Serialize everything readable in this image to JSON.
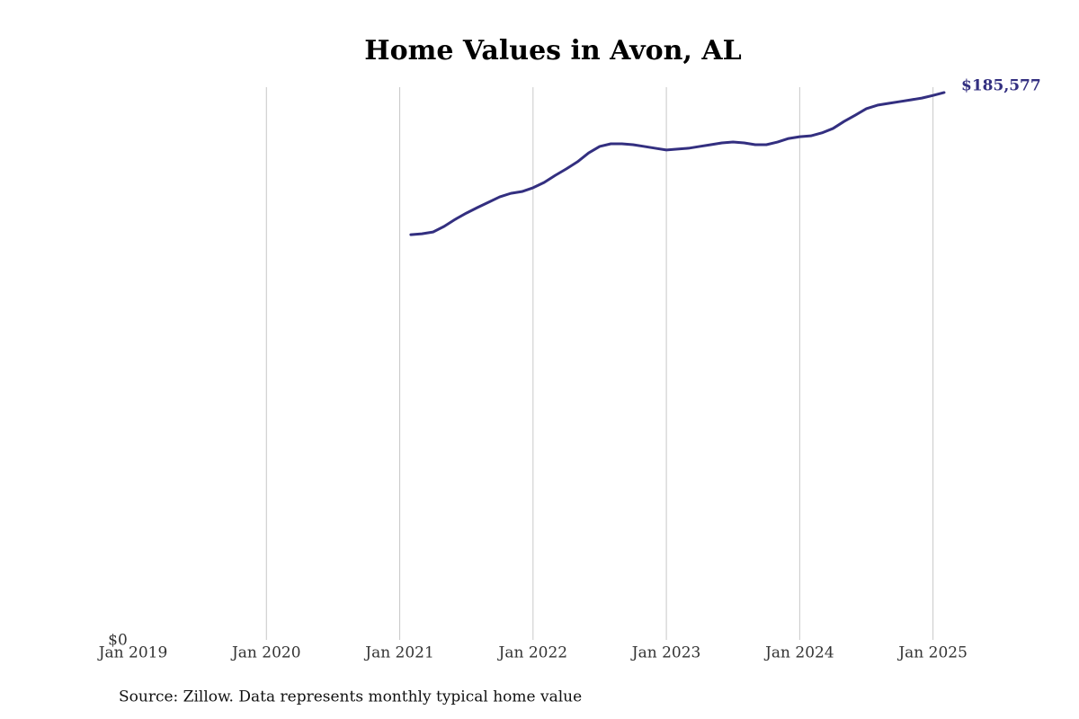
{
  "chart_data": {
    "type": "line",
    "title": "Home Values in Avon, AL",
    "source": "Source: Zillow. Data represents monthly typical home value",
    "x": [
      "2021-02",
      "2021-03",
      "2021-04",
      "2021-05",
      "2021-06",
      "2021-07",
      "2021-08",
      "2021-09",
      "2021-10",
      "2021-11",
      "2021-12",
      "2022-01",
      "2022-02",
      "2022-03",
      "2022-04",
      "2022-05",
      "2022-06",
      "2022-07",
      "2022-08",
      "2022-09",
      "2022-10",
      "2022-11",
      "2022-12",
      "2023-01",
      "2023-02",
      "2023-03",
      "2023-04",
      "2023-05",
      "2023-06",
      "2023-07",
      "2023-08",
      "2023-09",
      "2023-10",
      "2023-11",
      "2023-12",
      "2024-01",
      "2024-02",
      "2024-03",
      "2024-04",
      "2024-05",
      "2024-06",
      "2024-07",
      "2024-08",
      "2024-09",
      "2024-10",
      "2024-11",
      "2024-12",
      "2025-01",
      "2025-02"
    ],
    "series": [
      {
        "name": "Home value",
        "color": "#332f80",
        "values": [
          137400,
          137700,
          138300,
          140200,
          142600,
          144700,
          146600,
          148400,
          150200,
          151400,
          152000,
          153300,
          155100,
          157500,
          159700,
          162100,
          165100,
          167300,
          168200,
          168200,
          167900,
          167300,
          166700,
          166100,
          166400,
          166700,
          167300,
          167900,
          168500,
          168800,
          168500,
          167900,
          167900,
          168800,
          170000,
          170600,
          170900,
          171900,
          173400,
          175800,
          177900,
          180100,
          181300,
          181900,
          182500,
          183100,
          183700,
          184600,
          185577
        ],
        "value_labels": [
          null,
          null,
          null,
          null,
          null,
          null,
          null,
          null,
          null,
          null,
          null,
          null,
          null,
          null,
          null,
          null,
          null,
          null,
          null,
          null,
          null,
          null,
          null,
          null,
          null,
          null,
          null,
          null,
          null,
          null,
          null,
          null,
          null,
          null,
          null,
          null,
          null,
          null,
          null,
          null,
          null,
          null,
          null,
          null,
          null,
          null,
          null,
          null,
          "$185,577"
        ]
      }
    ],
    "xlim": [
      "2019-01",
      "2025-02"
    ],
    "xticks": [
      {
        "value": "2019-01",
        "label": "Jan 2019"
      },
      {
        "value": "2020-01",
        "label": "Jan 2020"
      },
      {
        "value": "2021-01",
        "label": "Jan 2021"
      },
      {
        "value": "2022-01",
        "label": "Jan 2022"
      },
      {
        "value": "2023-01",
        "label": "Jan 2023"
      },
      {
        "value": "2024-01",
        "label": "Jan 2024"
      },
      {
        "value": "2025-01",
        "label": "Jan 2025"
      }
    ],
    "ylim": [
      0,
      187000
    ],
    "yticks": [
      {
        "value": 0,
        "label": "$0"
      }
    ],
    "grid": true
  }
}
